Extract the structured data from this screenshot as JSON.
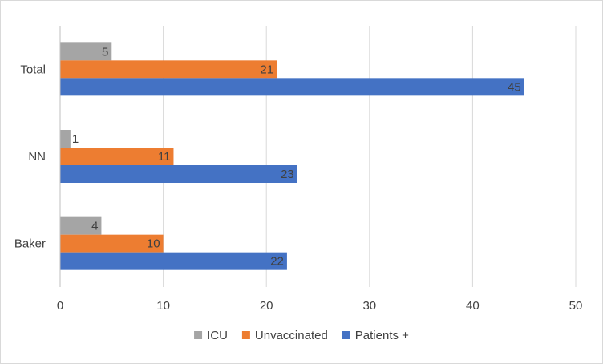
{
  "chart_data": {
    "type": "bar",
    "orientation": "horizontal",
    "categories": [
      "Total",
      "NN",
      "Baker"
    ],
    "series": [
      {
        "name": "ICU",
        "color": "#a5a5a5",
        "values": [
          5,
          1,
          4
        ]
      },
      {
        "name": "Unvaccinated",
        "color": "#ed7d31",
        "values": [
          21,
          11,
          10
        ]
      },
      {
        "name": "Patients +",
        "color": "#4472c4",
        "values": [
          45,
          23,
          22
        ]
      }
    ],
    "xlim": [
      0,
      50
    ],
    "x_ticks": [
      "0",
      "10",
      "20",
      "30",
      "40",
      "50"
    ],
    "grid": "vertical",
    "legend_position": "bottom",
    "data_labels": true
  }
}
